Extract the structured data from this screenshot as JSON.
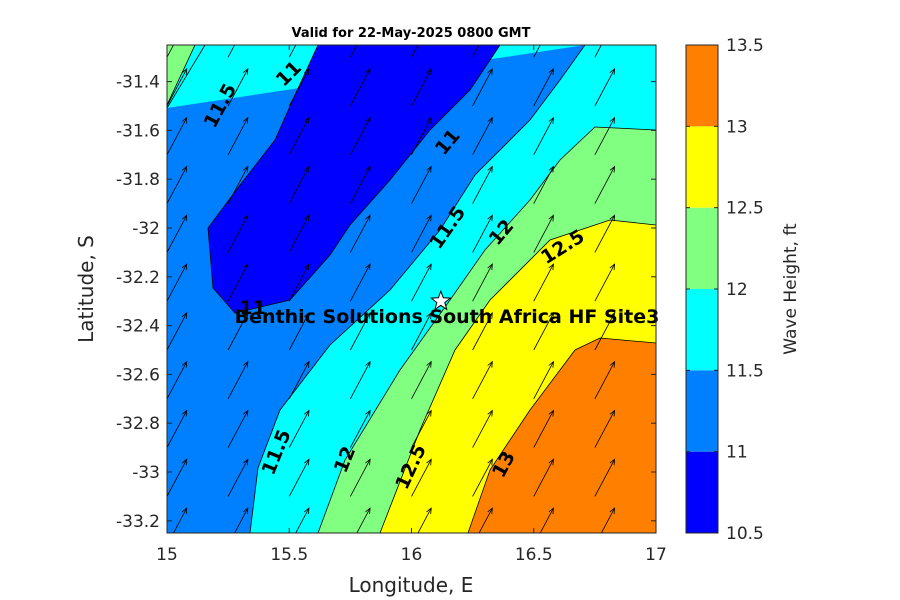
{
  "chart_data": {
    "type": "contour",
    "title": "Valid for 22-May-2025 0800 GMT",
    "xlabel": "Longitude, E",
    "ylabel": "Latitude, S",
    "xlim": [
      15,
      17
    ],
    "ylim": [
      -33.25,
      -31.25
    ],
    "xticks": [
      "15",
      "15.5",
      "16",
      "16.5",
      "17"
    ],
    "yticks": [
      "-31.4",
      "-31.6",
      "-31.8",
      "-32",
      "-32.2",
      "-32.4",
      "-32.6",
      "-32.8",
      "-33",
      "-33.2"
    ],
    "colorbar": {
      "label": "Wave Height, ft",
      "levels": [
        10.5,
        11,
        11.5,
        12,
        12.5,
        13,
        13.5
      ],
      "tick_labels": [
        "10.5",
        "11",
        "11.5",
        "12",
        "12.5",
        "13",
        "13.5"
      ],
      "colors": [
        "#0000ff",
        "#0080ff",
        "#00ffff",
        "#80ff80",
        "#ffff00",
        "#ff8000"
      ]
    },
    "contour_labels": [
      {
        "text": "11.5",
        "lon": 15.22,
        "lat": -31.5,
        "angle": -62
      },
      {
        "text": "11",
        "lon": 15.5,
        "lat": -31.37,
        "angle": -45
      },
      {
        "text": "11",
        "lon": 16.15,
        "lat": -31.65,
        "angle": -50
      },
      {
        "text": "11.5",
        "lon": 16.15,
        "lat": -32.0,
        "angle": -55
      },
      {
        "text": "12",
        "lon": 16.37,
        "lat": -32.02,
        "angle": -50
      },
      {
        "text": "12.5",
        "lon": 16.62,
        "lat": -32.08,
        "angle": -32
      },
      {
        "text": "11",
        "lon": 15.35,
        "lat": -32.33,
        "angle": 0
      },
      {
        "text": "11.5",
        "lon": 15.45,
        "lat": -32.92,
        "angle": -68
      },
      {
        "text": "12",
        "lon": 15.73,
        "lat": -32.95,
        "angle": -68
      },
      {
        "text": "12.5",
        "lon": 16.0,
        "lat": -32.98,
        "angle": -65
      },
      {
        "text": "13",
        "lon": 16.38,
        "lat": -32.97,
        "angle": -62
      }
    ],
    "site": {
      "name": "Benthic Solutions South Africa HF Site3",
      "lon": 16.12,
      "lat": -32.3
    },
    "vector_field": {
      "direction": "north-north-east",
      "lon_spacing": 0.25,
      "lat_spacing": 0.2
    },
    "grid": false,
    "legend": "colorbar-right"
  }
}
